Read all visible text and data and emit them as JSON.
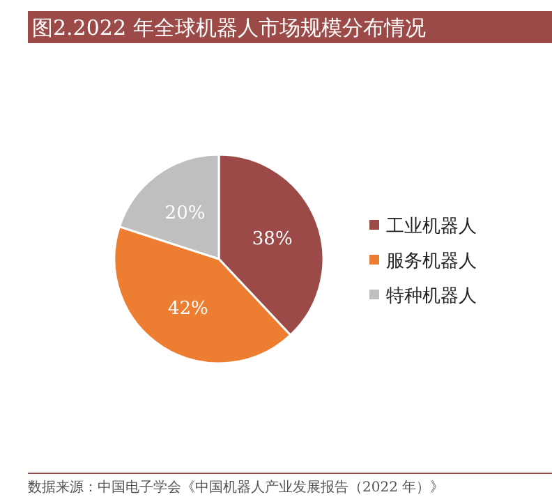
{
  "chart_data": {
    "type": "pie",
    "title": "图2.2022 年全球机器人市场规模分布情况",
    "categories": [
      "工业机器人",
      "服务机器人",
      "特种机器人"
    ],
    "values": [
      38,
      42,
      20
    ],
    "colors": [
      "#9b4a47",
      "#ed7d31",
      "#bfbfbf"
    ],
    "value_labels": [
      "38%",
      "42%",
      "20%"
    ],
    "legend": "right",
    "annotations": [
      "数据来源：中国电子学会《中国机器人产业发展报告（2022 年）》"
    ]
  }
}
